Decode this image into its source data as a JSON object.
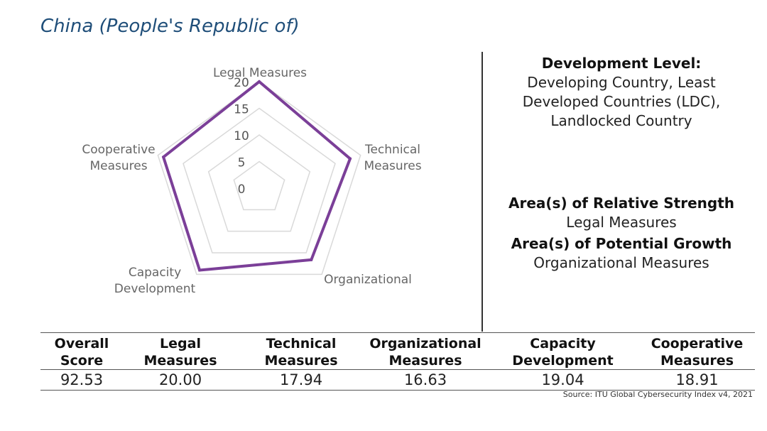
{
  "country_title": "China (People's Republic of)",
  "info": {
    "development_heading": "Development Level:",
    "development_lines": [
      "Developing Country, Least",
      "Developed Countries (LDC),",
      "Landlocked Country"
    ],
    "strength_heading": "Area(s) of Relative Strength",
    "strength_value": "Legal Measures",
    "growth_heading": "Area(s) of Potential Growth",
    "growth_value": "Organizational Measures"
  },
  "chart_data": {
    "type": "radar",
    "axes": [
      {
        "label_lines": [
          "Legal Measures"
        ],
        "value": 20.0
      },
      {
        "label_lines": [
          "Technical",
          "Measures"
        ],
        "value": 17.94
      },
      {
        "label_lines": [
          "Organizational"
        ],
        "value": 16.63
      },
      {
        "label_lines": [
          "Capacity",
          "Development"
        ],
        "value": 19.04
      },
      {
        "label_lines": [
          "Cooperative",
          "Measures"
        ],
        "value": 18.91
      }
    ],
    "rlim": [
      0,
      20
    ],
    "ticks": [
      0,
      5,
      10,
      15,
      20
    ],
    "grid": true,
    "series_color": "#7b3f98",
    "grid_color": "#d9d9d9"
  },
  "table": {
    "headers": [
      [
        "Overall",
        "Score"
      ],
      [
        "Legal",
        "Measures"
      ],
      [
        "Technical",
        "Measures"
      ],
      [
        "Organizational",
        "Measures"
      ],
      [
        "Capacity",
        "Development"
      ],
      [
        "Cooperative",
        "Measures"
      ]
    ],
    "values": [
      "92.53",
      "20.00",
      "17.94",
      "16.63",
      "19.04",
      "18.91"
    ]
  },
  "source": "Source: ITU Global Cybersecurity Index v4, 2021"
}
